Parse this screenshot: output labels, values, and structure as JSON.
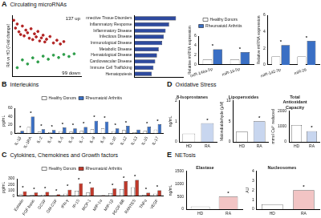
{
  "panels": [
    {
      "letter": "A",
      "title": "Circulating microRNAs"
    },
    {
      "letter": "B",
      "title": "Interleukins"
    },
    {
      "letter": "C",
      "title": "Cytokines, Chemokines and Growth factors"
    },
    {
      "letter": "D",
      "title": "Oxidative Stress"
    },
    {
      "letter": "E",
      "title": "NETosis"
    }
  ],
  "chart_data": [
    {
      "type": "scatter",
      "panel": "A",
      "ylabel": "RA vs HD (Fold change)",
      "annotations": [
        "137 up",
        "99 down"
      ],
      "xlim": [
        0,
        40
      ],
      "ylim": [
        -8,
        10
      ],
      "tick_labels": false,
      "series": [
        {
          "color": "#b22222",
          "marker": "circle",
          "x": [
            1,
            2,
            3,
            4,
            5,
            6,
            7,
            8,
            9,
            10,
            11,
            12,
            13,
            14,
            15,
            16,
            17,
            18,
            19,
            20,
            22,
            24,
            26,
            28,
            30
          ],
          "values": [
            8.5,
            6.2,
            7.4,
            5.1,
            4.3,
            6.8,
            3.9,
            5.6,
            4.8,
            3.2,
            6.0,
            2.8,
            4.5,
            3.6,
            5.2,
            2.4,
            3.3,
            4.1,
            2.1,
            2.9,
            3.7,
            1.8,
            2.6,
            1.5,
            2.2
          ]
        },
        {
          "color": "#2e9e4a",
          "marker": "circle",
          "x": [
            3,
            6,
            9,
            12,
            15,
            18,
            21,
            24,
            27,
            30,
            33,
            36
          ],
          "values": [
            -5.5,
            -3.2,
            -4.4,
            -2.6,
            -3.8,
            -2.1,
            -3.0,
            -1.8,
            -2.5,
            -1.6,
            -2.2,
            -1.4
          ]
        }
      ]
    },
    {
      "type": "bar",
      "panel": "A",
      "orientation": "horizontal",
      "tick_labels": "y",
      "categories": [
        "Connective Tissue Disorders",
        "Inflammatory Response",
        "Inflammatory Disease",
        "Infectious Disease",
        "Immunological Disease",
        "Metabolic Disease",
        "Hematological Disease",
        "Cardiovascular Disease",
        "Immune Cell Trafficking",
        "Hematopoiesis"
      ],
      "values": [
        12,
        10,
        9,
        8.5,
        8,
        7,
        6.5,
        6,
        5.5,
        5
      ],
      "color": "#2e4a9e",
      "xlim": [
        0,
        14
      ]
    },
    {
      "type": "bar",
      "panel": "A",
      "ylabel": "Relative miRNA expression",
      "legend": "top",
      "categories": [
        "miR-146a-5p",
        "miR-16-5p"
      ],
      "series": [
        {
          "name": "Healthy Donors",
          "color": "#ffffff",
          "values": [
            1,
            1
          ]
        },
        {
          "name": "Rheumatoid Arthritis",
          "color": "#3a6fc4",
          "values": [
            3.2,
            2.6
          ]
        }
      ],
      "ylim": [
        0,
        6
      ],
      "yticks": [
        0,
        2,
        4,
        6
      ],
      "annotations": [
        "*",
        "*"
      ]
    },
    {
      "type": "bar",
      "panel": "A",
      "ylabel": "Relative miRNA expression",
      "categories": [
        "miR-142-3p",
        "miR-26"
      ],
      "series": [
        {
          "name": "Healthy Donors",
          "color": "#ffffff",
          "values": [
            1,
            1
          ]
        },
        {
          "name": "Rheumatoid Arthritis",
          "color": "#3a6fc4",
          "values": [
            2.4,
            2.9
          ]
        }
      ],
      "ylim": [
        0,
        6
      ],
      "yticks": [
        0,
        2,
        4,
        6
      ],
      "annotations": [
        "*",
        "*"
      ]
    },
    {
      "type": "bar",
      "panel": "B",
      "ylabel": "pg/mL",
      "legend": "top",
      "categories": [
        "IL-1β",
        "IL-1RA",
        "IL-2",
        "IL-4",
        "IL-5",
        "IL-6",
        "IL-7",
        "IL-8",
        "IL-9",
        "IL-10",
        "IL-12",
        "IL-13",
        "IL-15",
        "IL-17"
      ],
      "series": [
        {
          "name": "Healthy Donors",
          "color": "#ffffff",
          "values": [
            2,
            15,
            4,
            3,
            5,
            4,
            6,
            10,
            12,
            5,
            8,
            3,
            6,
            9
          ]
        },
        {
          "name": "Rheumatoid Arthritis",
          "color": "#3a6fc4",
          "values": [
            6,
            40,
            10,
            8,
            14,
            12,
            15,
            30,
            28,
            12,
            18,
            9,
            16,
            22
          ]
        }
      ],
      "ylim": [
        0,
        60
      ],
      "yticks": [
        0,
        20,
        40,
        60
      ],
      "annotations": [
        "*",
        "*",
        "*",
        "*",
        "*",
        "*",
        "*",
        "*",
        "*",
        "*",
        "*",
        null,
        "*",
        "*"
      ]
    },
    {
      "type": "bar",
      "panel": "C",
      "ylabel": "pg/mL",
      "legend": "top",
      "categories": [
        "Eotaxin",
        "FGF basic",
        "GCSF",
        "GM-CSF",
        "IFN-γ",
        "IP-10",
        "MCP-1",
        "MIP-1α",
        "MIP-1β",
        "PDGF-BB",
        "RANTES",
        "TNFα",
        "VEGF"
      ],
      "series": [
        {
          "name": "Healthy Donors",
          "color": "#ffffff",
          "values": [
            30,
            20,
            25,
            10,
            40,
            90,
            60,
            5,
            50,
            120,
            150,
            20,
            40
          ]
        },
        {
          "name": "Rheumatoid Arthritis",
          "color": "#c0392b",
          "values": [
            80,
            60,
            70,
            30,
            110,
            220,
            150,
            15,
            130,
            260,
            280,
            55,
            100
          ]
        }
      ],
      "ylim": [
        0,
        300
      ],
      "yticks": [
        0,
        100,
        200,
        300
      ],
      "annotations": [
        "*",
        "*",
        "*",
        "*",
        "*",
        "*",
        "*",
        null,
        "*",
        "*",
        "*",
        "*",
        "*"
      ]
    },
    {
      "type": "bar",
      "panel": "D",
      "title": "8-Isoprostanes",
      "ylabel": "ng/mL",
      "categories": [
        "HD",
        "RA"
      ],
      "values": [
        0.4,
        0.9
      ],
      "colors": [
        "#ffffff",
        "#c8d6ef"
      ],
      "ylim": [
        0,
        2
      ],
      "yticks": [
        0,
        1,
        2
      ],
      "annotations": [
        null,
        "*"
      ]
    },
    {
      "type": "bar",
      "panel": "D",
      "title": "Lipoperoxides",
      "ylabel": "Malondialdehyde (µM)",
      "categories": [
        "HD",
        "RA"
      ],
      "values": [
        2.5,
        5
      ],
      "colors": [
        "#ffffff",
        "#c8d6ef"
      ],
      "ylim": [
        0,
        10
      ],
      "yticks": [
        0,
        5,
        10
      ],
      "annotations": [
        null,
        "*"
      ]
    },
    {
      "type": "bar",
      "panel": "D",
      "title": "Total Antioxidant Capacity",
      "ylabel": "mmol Cu²⁺ reduced",
      "categories": [
        "HD",
        "RA"
      ],
      "values": [
        1100,
        700
      ],
      "colors": [
        "#ffffff",
        "#c8d6ef"
      ],
      "ylim": [
        0,
        2000
      ],
      "yticks": [
        0,
        1000,
        2000
      ],
      "annotations": [
        null,
        "*"
      ]
    },
    {
      "type": "bar",
      "panel": "E",
      "title": "Elastase",
      "ylabel": "ng/mL",
      "categories": [
        "HD",
        "RA"
      ],
      "values": [
        100,
        500
      ],
      "colors": [
        "#ffffff",
        "#f2c4c4"
      ],
      "ylim": [
        0,
        1500
      ],
      "yticks": [
        0,
        500,
        1000,
        1500
      ],
      "annotations": [
        null,
        "*"
      ]
    },
    {
      "type": "bar",
      "panel": "E",
      "title": "Nucleosomes",
      "ylabel": "AU",
      "categories": [
        "HD",
        "RA"
      ],
      "values": [
        0.5,
        2
      ],
      "colors": [
        "#ffffff",
        "#f2c4c4"
      ],
      "ylim": [
        0,
        4
      ],
      "yticks": [
        0,
        1,
        2,
        3,
        4
      ],
      "annotations": [
        null,
        "*"
      ]
    }
  ]
}
